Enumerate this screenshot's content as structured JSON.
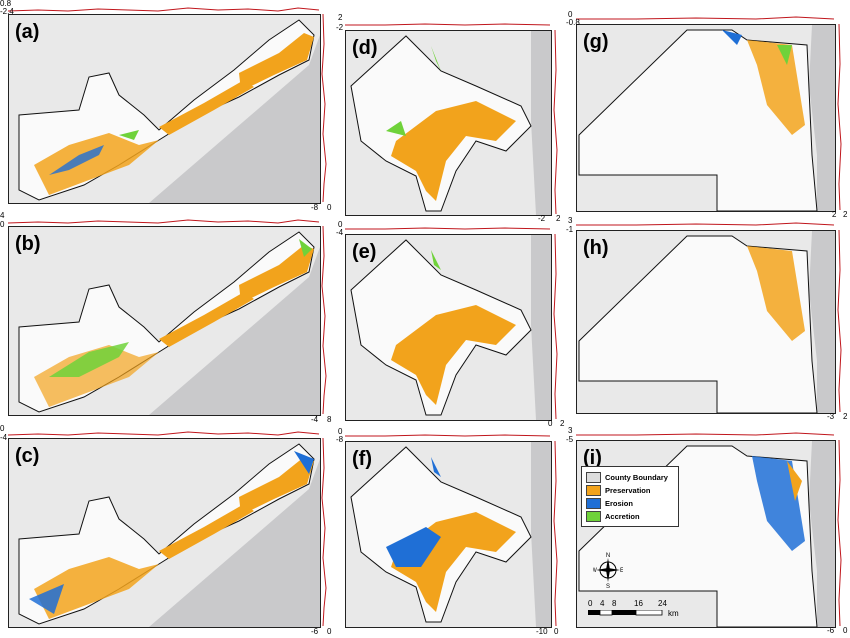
{
  "panels": [
    {
      "label": "(a)",
      "top_ticks": [
        "0.8",
        "-2.4"
      ],
      "right_ticks": [
        "-8",
        "0"
      ]
    },
    {
      "label": "(b)",
      "top_ticks": [
        "4",
        "0"
      ],
      "right_ticks": [
        "-4",
        "8"
      ]
    },
    {
      "label": "(c)",
      "top_ticks": [
        "0",
        "-4"
      ],
      "right_ticks": [
        "-6",
        "0"
      ]
    },
    {
      "label": "(d)",
      "top_ticks": [
        "2",
        "-2"
      ],
      "right_ticks": [
        "-2",
        "2"
      ]
    },
    {
      "label": "(e)",
      "top_ticks": [
        "0",
        "-4"
      ],
      "right_ticks": [
        "0",
        "2"
      ]
    },
    {
      "label": "(f)",
      "top_ticks": [
        "0",
        "-8"
      ],
      "right_ticks": [
        "-10",
        "0"
      ]
    },
    {
      "label": "(g)",
      "top_ticks": [
        "0",
        "-0.8"
      ],
      "right_ticks": [
        "2",
        "2"
      ]
    },
    {
      "label": "(h)",
      "top_ticks": [
        "3",
        "-1"
      ],
      "right_ticks": [
        "-3",
        "2"
      ]
    },
    {
      "label": "(i)",
      "top_ticks": [
        "3",
        "-5"
      ],
      "right_ticks": [
        "-6",
        "0"
      ]
    }
  ],
  "legend": {
    "items": [
      {
        "label": "County Boundary",
        "color": "#dddddd"
      },
      {
        "label": "Preservation",
        "color": "#f2a31c"
      },
      {
        "label": "Erosion",
        "color": "#1f6fd6"
      },
      {
        "label": "Accretion",
        "color": "#6fd23a"
      }
    ]
  },
  "scale_bar": {
    "ticks": [
      "0",
      "4",
      "8",
      "16",
      "24"
    ],
    "unit": "km"
  },
  "compass": {
    "n": "N",
    "s": "S",
    "e": "E",
    "w": "W"
  },
  "colors": {
    "ocean": "#c9c9cb",
    "land": "#ececec",
    "profile": "#c0161c"
  }
}
